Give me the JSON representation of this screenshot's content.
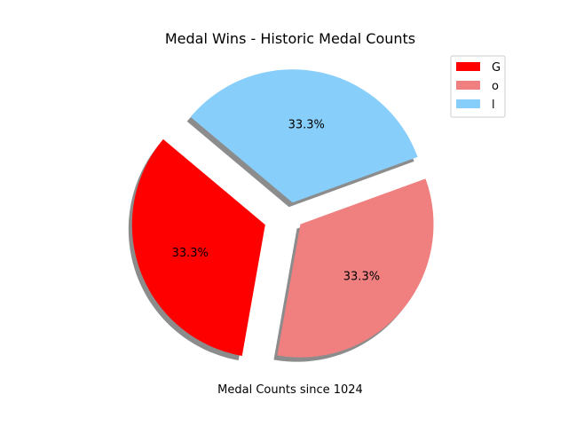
{
  "chart_data": {
    "type": "pie",
    "title": "Medal Wins - Historic Medal Counts",
    "xlabel": "Medal Counts since 1024",
    "categories": [
      "G",
      "o",
      "l"
    ],
    "values": [
      33.3,
      33.3,
      33.3
    ],
    "labels": [
      "33.3%",
      "33.3%",
      "33.3%"
    ],
    "colors": [
      "#ff0000",
      "#f08080",
      "#87cefa"
    ],
    "explode": [
      0.2,
      0.1,
      0.1
    ],
    "start_angle_deg": 140,
    "shadow": true,
    "legend": {
      "placement": "top-right",
      "entries": [
        "G",
        "o",
        "l"
      ]
    }
  }
}
